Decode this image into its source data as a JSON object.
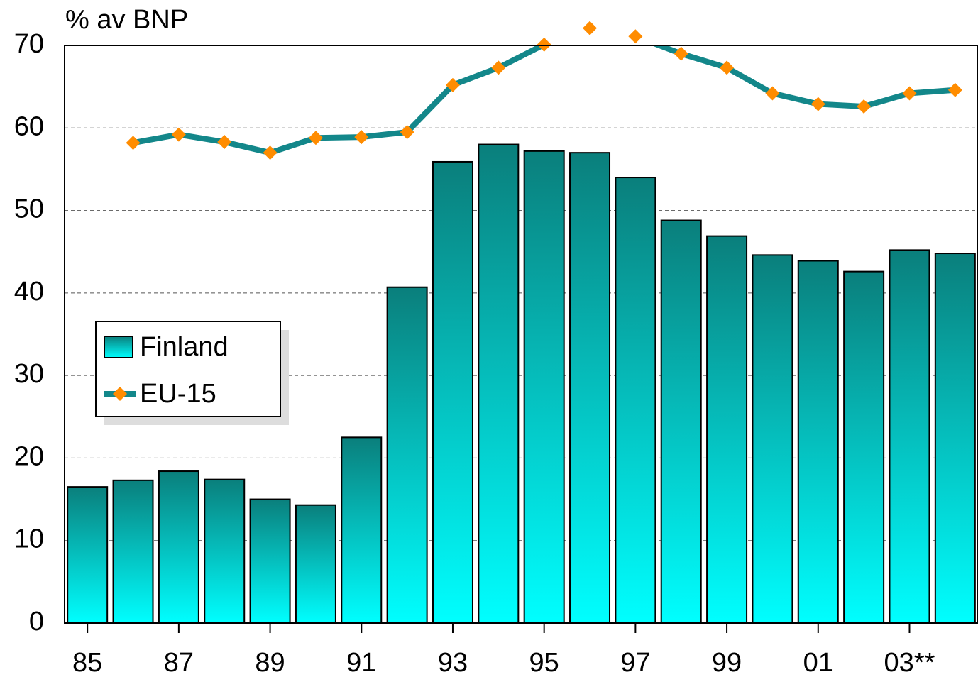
{
  "chart_data": {
    "type": "bar",
    "ylabel": "% av BNP",
    "categories": [
      "85",
      null,
      "87",
      null,
      "89",
      null,
      "91",
      null,
      "93",
      null,
      "95",
      null,
      "97",
      null,
      "99",
      null,
      "01",
      null,
      "03**",
      null
    ],
    "series": [
      {
        "name": "Finland",
        "type": "bar",
        "color": "#0a7f7c",
        "color_bottom": "#00ffff",
        "values": [
          16.5,
          17.3,
          18.4,
          17.4,
          15.0,
          14.3,
          22.5,
          40.7,
          55.9,
          58.0,
          57.2,
          57.0,
          54.0,
          48.8,
          46.9,
          44.6,
          43.9,
          42.6,
          45.2,
          44.8
        ]
      },
      {
        "name": "EU-15",
        "type": "line",
        "color": "#13878a",
        "marker_color": "#ff8c00",
        "values": [
          null,
          58.2,
          59.2,
          58.3,
          57.0,
          58.8,
          58.9,
          59.5,
          65.2,
          67.3,
          70.1,
          72.1,
          71.1,
          69.0,
          67.3,
          64.2,
          62.9,
          62.6,
          64.2,
          64.6
        ]
      }
    ],
    "ylim": [
      0,
      70
    ],
    "yticks": [
      0,
      10,
      20,
      30,
      40,
      50,
      60,
      70
    ],
    "grid": true,
    "legend": "left"
  }
}
